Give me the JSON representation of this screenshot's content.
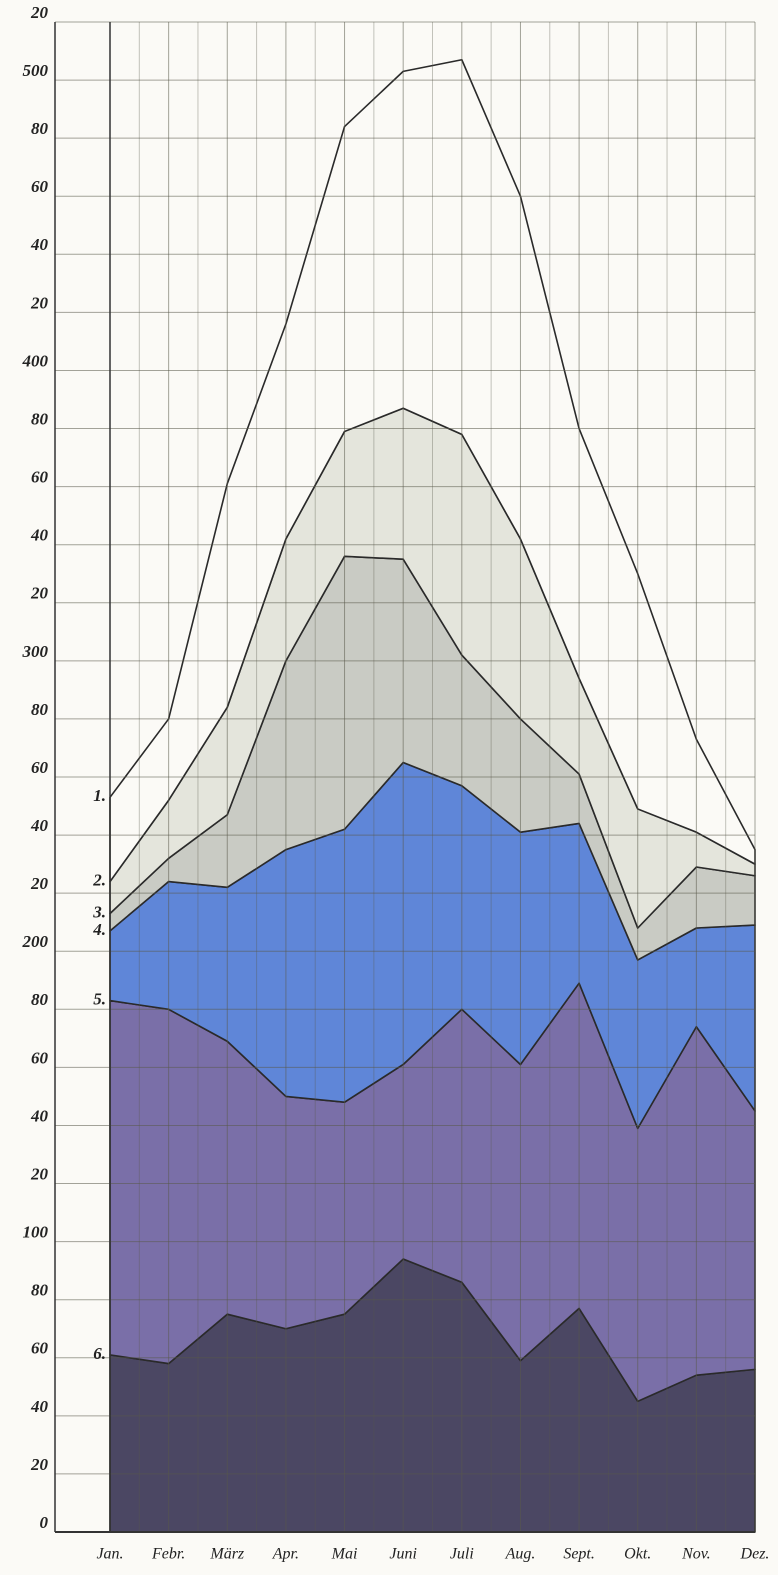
{
  "chart_data": {
    "type": "stacked-area",
    "categories": [
      "Jan.",
      "Febr.",
      "März",
      "Apr.",
      "Mai",
      "Juni",
      "Juli",
      "Aug.",
      "Sept.",
      "Okt.",
      "Nov.",
      "Dez."
    ],
    "series": [
      {
        "name": "6.",
        "color": "#4b4763",
        "values": [
          61,
          58,
          75,
          70,
          75,
          94,
          86,
          59,
          77,
          45,
          54,
          56
        ]
      },
      {
        "name": "5.",
        "color": "#7a6fa8",
        "values": [
          122,
          122,
          94,
          80,
          73,
          67,
          94,
          102,
          112,
          94,
          120,
          89
        ]
      },
      {
        "name": "4.",
        "color": "#5f86d8",
        "values": [
          24,
          44,
          53,
          85,
          94,
          104,
          77,
          80,
          55,
          58,
          34,
          64
        ]
      },
      {
        "name": "3.",
        "color": "#c9cbc4",
        "values": [
          6,
          8,
          25,
          65,
          94,
          70,
          45,
          39,
          17,
          11,
          21,
          17
        ]
      },
      {
        "name": "2.",
        "color": "#e4e5dc",
        "values": [
          11,
          20,
          37,
          42,
          43,
          52,
          76,
          62,
          33,
          41,
          12,
          4
        ]
      },
      {
        "name": "1.",
        "color": "#fbfaf6",
        "values": [
          29,
          28,
          77,
          74,
          105,
          116,
          129,
          118,
          86,
          81,
          32,
          5
        ]
      }
    ],
    "ylim": [
      0,
      520
    ],
    "yticks": [
      0,
      20,
      40,
      60,
      80,
      100,
      {
        "value": 120,
        "label": "20"
      },
      {
        "value": 140,
        "label": "40"
      },
      {
        "value": 160,
        "label": "60"
      },
      {
        "value": 180,
        "label": "80"
      },
      200,
      {
        "value": 220,
        "label": "20"
      },
      {
        "value": 240,
        "label": "40"
      },
      {
        "value": 260,
        "label": "60"
      },
      {
        "value": 280,
        "label": "80"
      },
      300,
      {
        "value": 320,
        "label": "20"
      },
      {
        "value": 340,
        "label": "40"
      },
      {
        "value": 360,
        "label": "60"
      },
      {
        "value": 380,
        "label": "80"
      },
      400,
      {
        "value": 420,
        "label": "20"
      },
      {
        "value": 440,
        "label": "40"
      },
      {
        "value": 460,
        "label": "60"
      },
      {
        "value": 480,
        "label": "80"
      },
      500,
      {
        "value": 520,
        "label": "20"
      }
    ],
    "grid": true
  }
}
